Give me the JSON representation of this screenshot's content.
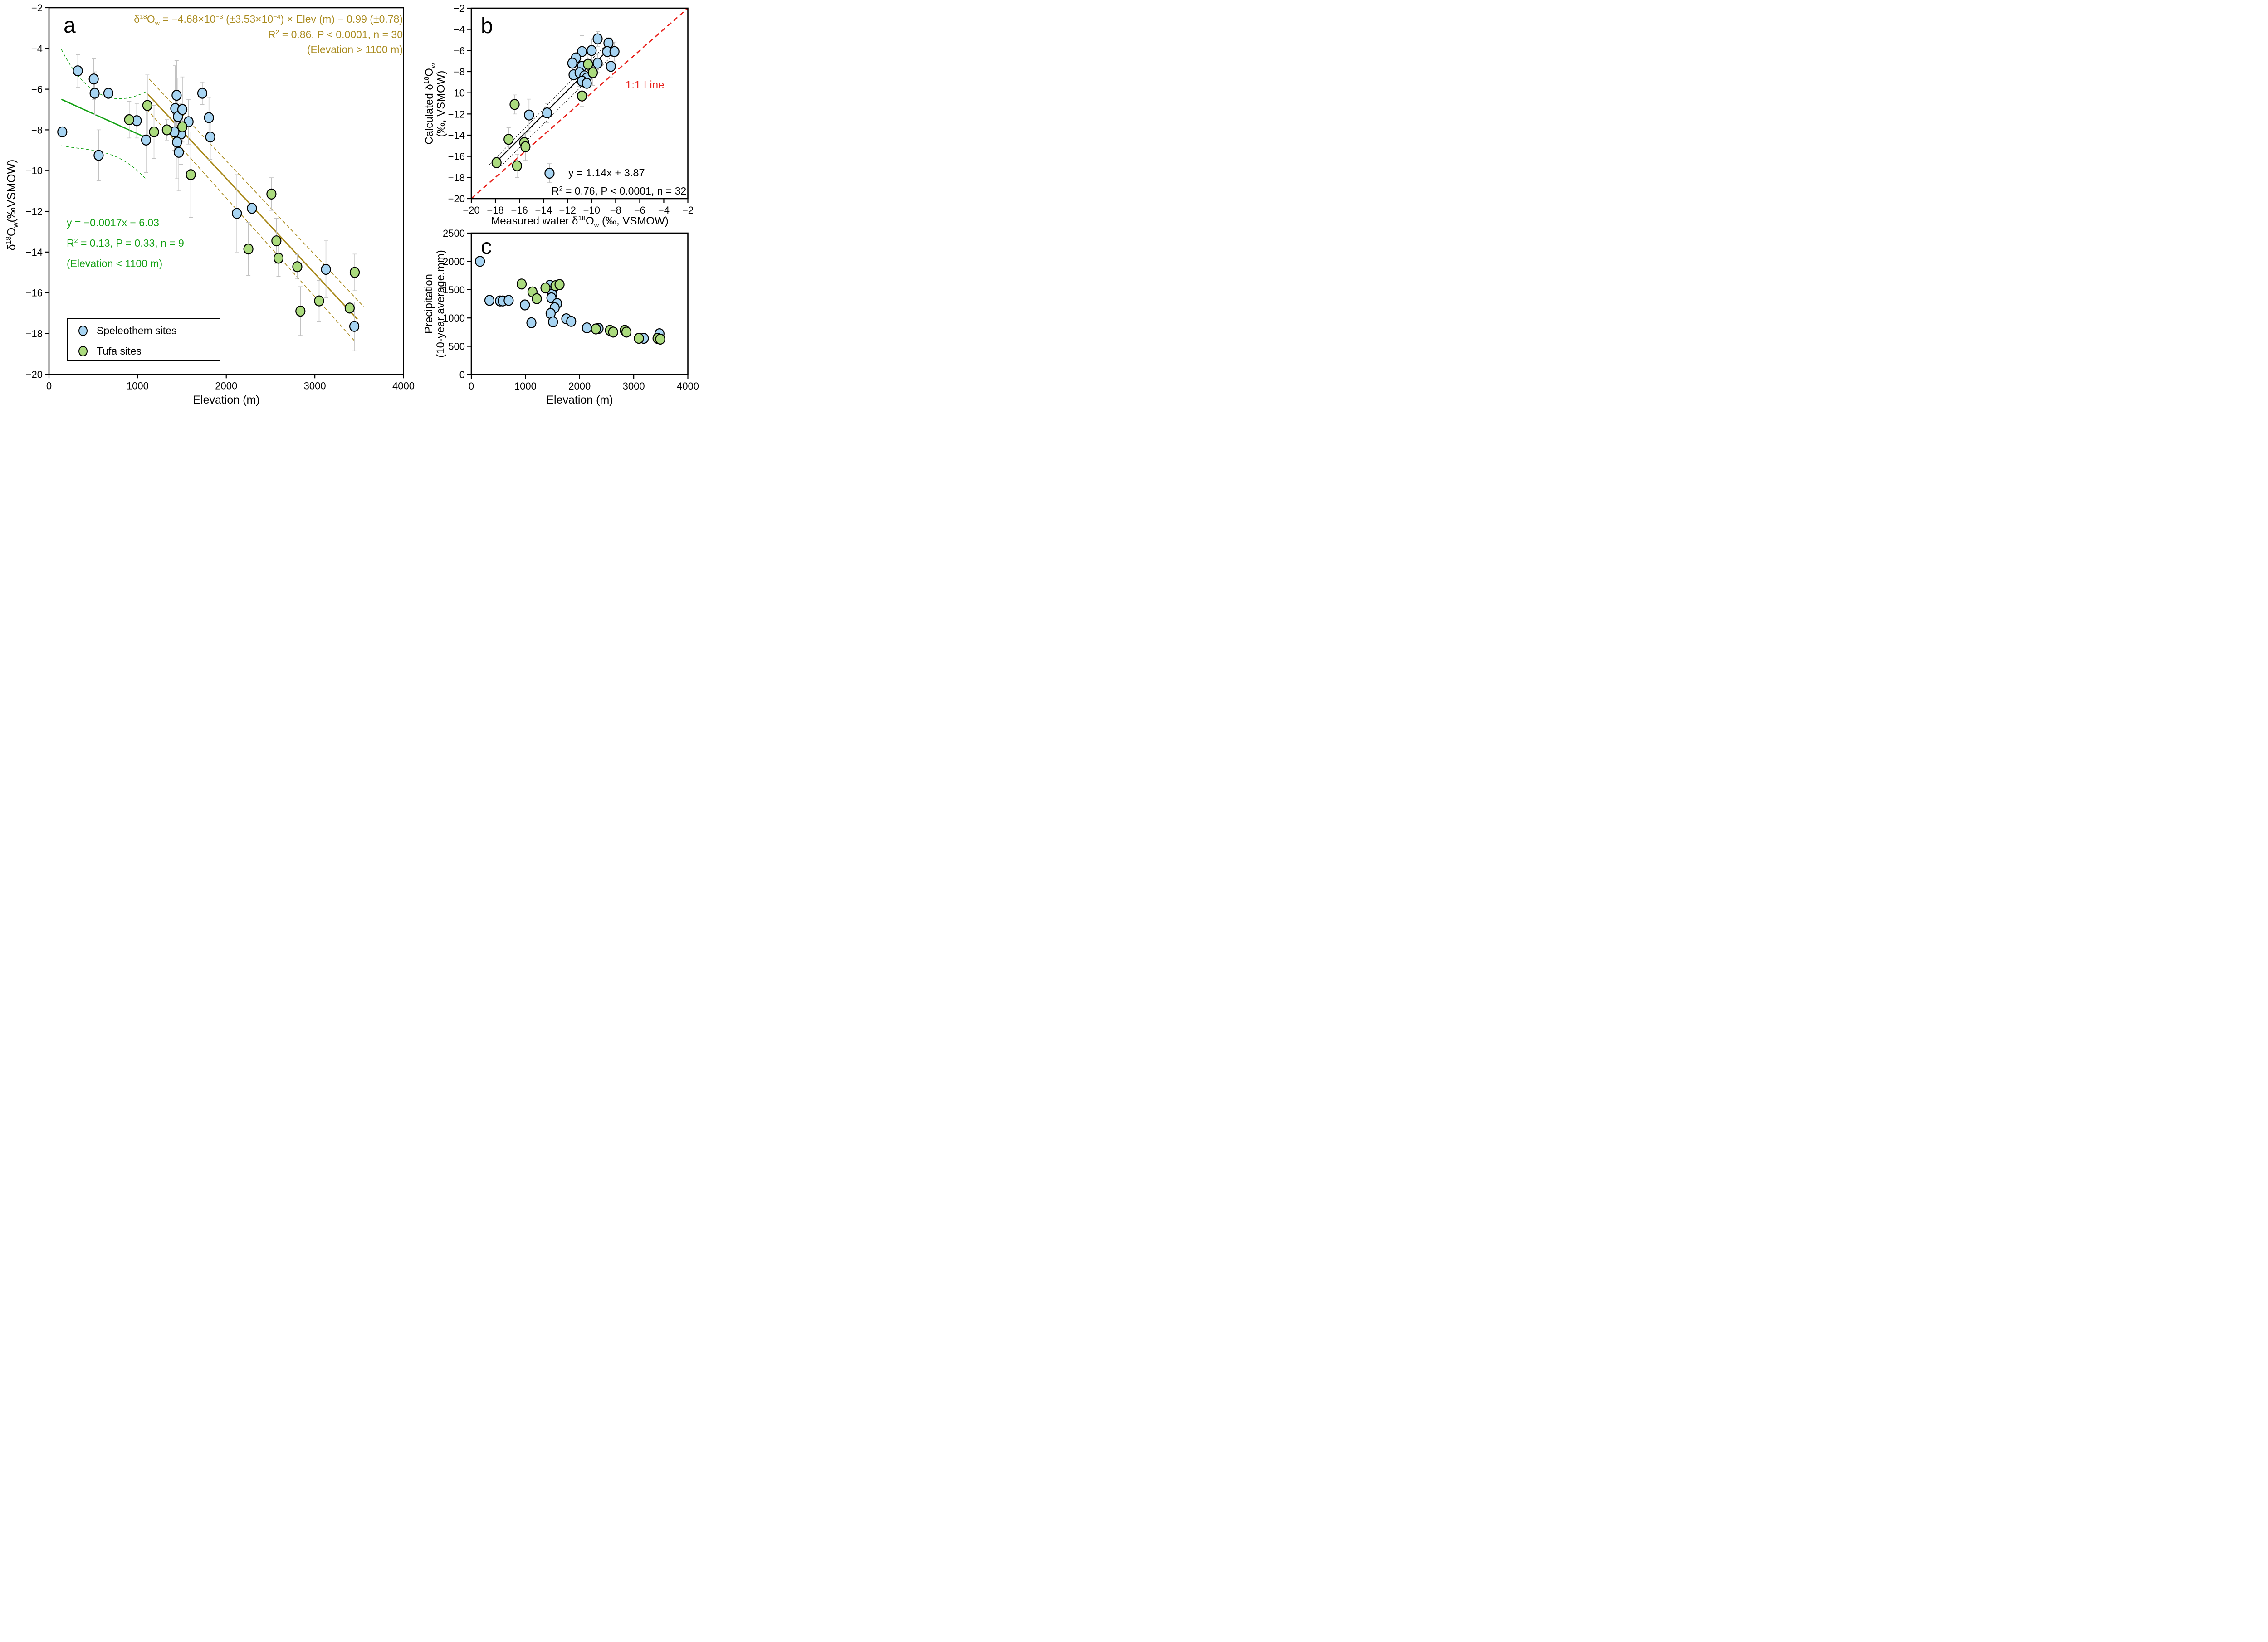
{
  "colors": {
    "blue": "#A7D4F2",
    "green": "#ABDB7E",
    "olive": "#A98A1D",
    "line_green": "#12A012",
    "red": "#E8211B",
    "gray": "#C2C2C2",
    "black": "#000000"
  },
  "legend": {
    "speleothem": "Speleothem sites",
    "tufa": "Tufa sites"
  },
  "text": {
    "letter_a": "a",
    "letter_b": "b",
    "letter_c": "c",
    "a_ann3": "(Elevation > 1100 m)",
    "a_green1": "y = −0.0017x −  6.03",
    "a_green3": "(Elevation < 1100 m)",
    "one_to_one": "1:1 Line",
    "b_eq1": "y = 1.14x + 3.87",
    "b_ylabel2": "(‰, VSMOW)",
    "c_ylabel1": "Precipitation",
    "c_ylabel2": "(10-year average,mm)",
    "a_xlabel": "Elevation (m)",
    "c_xlabel": "Elevation (m)"
  },
  "rich": {
    "a_ylabel": [
      {
        "t": "δ"
      },
      {
        "t": "18",
        "sup": 1
      },
      {
        "t": "O"
      },
      {
        "t": "w",
        "sub": 1
      },
      {
        "t": "(‰VSMOW)"
      }
    ],
    "a_ann1": [
      {
        "t": "δ"
      },
      {
        "t": "18",
        "sup": 1
      },
      {
        "t": "O"
      },
      {
        "t": "w",
        "sub": 1
      },
      {
        "t": " = −4.68×10"
      },
      {
        "t": "−3",
        "sup": 1
      },
      {
        "t": " (±3.53×10"
      },
      {
        "t": "−4",
        "sup": 1
      },
      {
        "t": ") × Elev (m) − 0.99 (±0.78)"
      }
    ],
    "a_ann2": [
      {
        "t": "R"
      },
      {
        "t": "2",
        "sup": 1
      },
      {
        "t": " = 0.86, P < 0.0001, n = 30"
      }
    ],
    "a_green2": [
      {
        "t": "R"
      },
      {
        "t": "2",
        "sup": 1
      },
      {
        "t": " = 0.13, P = 0.33, n = 9"
      }
    ],
    "b_xlabel": [
      {
        "t": "Measured water δ"
      },
      {
        "t": "18",
        "sup": 1
      },
      {
        "t": "O"
      },
      {
        "t": "w",
        "sub": 1
      },
      {
        "t": " (‰, VSMOW)"
      }
    ],
    "b_ylabel1": [
      {
        "t": "Calculated δ"
      },
      {
        "t": "18",
        "sup": 1
      },
      {
        "t": "O"
      },
      {
        "t": "w",
        "sub": 1
      }
    ],
    "b_eq2": [
      {
        "t": "R"
      },
      {
        "t": "2",
        "sup": 1
      },
      {
        "t": " = 0.76, P < 0.0001, n = 32"
      }
    ]
  },
  "chart_data": [
    {
      "id": "a",
      "type": "scatter",
      "title": "",
      "xlabel": "Elevation (m)",
      "ylabel": "δ18Ow (‰ VSMOW)",
      "xlim": [
        0,
        4000
      ],
      "ylim": [
        -20,
        -2
      ],
      "grid": false,
      "legend_position": "bottom-left",
      "legend_entries": [
        "Speleothem sites",
        "Tufa sites"
      ],
      "annotations": [
        "δ18Ow = −4.68×10−3 (±3.53×10−4) × Elev (m) − 0.99 (±0.78)",
        "R2 = 0.86, P < 0.0001, n = 30",
        "(Elevation > 1100 m)",
        "y = −0.0017x − 6.03",
        "R2 = 0.13, P = 0.33, n = 9",
        "(Elevation < 1100 m)"
      ],
      "px": {
        "x0": 108,
        "y0": 17,
        "x1": 889.5,
        "y1": 825.3
      },
      "xrange": [
        0,
        4000
      ],
      "yrange": [
        -20,
        -2
      ],
      "marker": [
        10,
        11
      ],
      "xticks": [
        {
          "v": 0,
          "l": "0"
        },
        {
          "v": 1000,
          "l": "1000"
        },
        {
          "v": 2000,
          "l": "2000"
        },
        {
          "v": 3000,
          "l": "3000"
        },
        {
          "v": 4000,
          "l": "4000"
        }
      ],
      "yticks": [
        {
          "v": -2,
          "l": "−2"
        },
        {
          "v": -4,
          "l": "−4"
        },
        {
          "v": -6,
          "l": "−6"
        },
        {
          "v": -8,
          "l": "−8"
        },
        {
          "v": -10,
          "l": "−10"
        },
        {
          "v": -12,
          "l": "−12"
        },
        {
          "v": -14,
          "l": "−14"
        },
        {
          "v": -16,
          "l": "−16"
        },
        {
          "v": -18,
          "l": "−18"
        },
        {
          "v": -20,
          "l": "−20"
        }
      ],
      "lines": [
        {
          "name": "green-ci-upper",
          "type": "bezier",
          "pts": [
            [
              140,
              -4.05
            ],
            [
              450,
              -6.7
            ],
            [
              800,
              -6.8
            ],
            [
              1105,
              -6.1
            ]
          ],
          "color": "line_green",
          "w": 1.4,
          "dash": "6,5"
        },
        {
          "name": "green-ci-lower",
          "type": "bezier",
          "pts": [
            [
              140,
              -8.78
            ],
            [
              480,
              -9.05
            ],
            [
              760,
              -8.85
            ],
            [
              1090,
              -10.4
            ]
          ],
          "color": "line_green",
          "w": 1.4,
          "dash": "6,5"
        },
        {
          "name": "green-fit-line",
          "type": "seg",
          "pts": [
            [
              140,
              -6.5
            ],
            [
              1105,
              -8.4
            ]
          ],
          "color": "line_green",
          "w": 2.8
        },
        {
          "name": "olive-ci-upper",
          "type": "seg",
          "pts": [
            [
              1130,
              -5.5
            ],
            [
              3555,
              -16.7
            ]
          ],
          "color": "olive",
          "w": 1.7,
          "dash": "8,5"
        },
        {
          "name": "olive-ci-lower",
          "type": "seg",
          "pts": [
            [
              1105,
              -7.0
            ],
            [
              3445,
              -18.35
            ]
          ],
          "color": "olive",
          "w": 1.7,
          "dash": "8,5"
        },
        {
          "name": "olive-fit-line",
          "type": "seg",
          "pts": [
            [
              1105,
              -6.2
            ],
            [
              3480,
              -17.3
            ]
          ],
          "color": "olive",
          "w": 3
        }
      ],
      "series": [
        {
          "name": "speleothem",
          "color": "blue",
          "points": [
            [
              150,
              -8.1
            ],
            [
              325,
              -5.1,
              0.8
            ],
            [
              505,
              -5.5,
              1.0
            ],
            [
              515,
              -6.2,
              1.05
            ],
            [
              560,
              -9.25,
              1.25
            ],
            [
              670,
              -6.2
            ],
            [
              990,
              -7.55,
              0.85
            ],
            [
              1095,
              -8.5,
              1.6
            ],
            [
              1425,
              -6.95,
              2.1
            ],
            [
              1440,
              -6.3,
              1.7
            ],
            [
              1455,
              -7.35,
              1.9
            ],
            [
              1465,
              -9.1,
              1.9
            ],
            [
              1490,
              -8.2,
              1.5
            ],
            [
              1505,
              -7.0,
              1.6
            ],
            [
              1575,
              -7.6,
              1.1
            ],
            [
              1730,
              -6.2,
              0.55
            ],
            [
              1805,
              -7.4,
              1.0
            ],
            [
              1415,
              -8.1,
              0.9
            ],
            [
              1820,
              -8.35,
              1.1
            ],
            [
              1445,
              -8.6,
              1.8
            ],
            [
              2120,
              -12.1,
              1.9
            ],
            [
              2290,
              -11.85
            ],
            [
              3125,
              -14.85,
              1.4
            ],
            [
              3445,
              -17.65,
              1.2
            ]
          ]
        },
        {
          "name": "tufa",
          "color": "green",
          "points": [
            [
              905,
              -7.5,
              0.9
            ],
            [
              1110,
              -6.8,
              1.5
            ],
            [
              1185,
              -8.1,
              1.3
            ],
            [
              1330,
              -8.0,
              0.5
            ],
            [
              1505,
              -7.85
            ],
            [
              1600,
              -10.2,
              2.1
            ],
            [
              2250,
              -13.85,
              1.3
            ],
            [
              2510,
              -11.15,
              0.8
            ],
            [
              2566,
              -13.45,
              1.1
            ],
            [
              2590,
              -14.3,
              0.9
            ],
            [
              2802,
              -14.72,
              0.6
            ],
            [
              2837,
              -16.9,
              1.2
            ],
            [
              3048,
              -16.4,
              1.0
            ],
            [
              3393,
              -16.75
            ],
            [
              3450,
              -15.0,
              0.9
            ]
          ]
        }
      ]
    },
    {
      "id": "b",
      "type": "scatter",
      "title": "",
      "xlabel": "Measured water δ18Ow (‰, VSMOW)",
      "ylabel": "Calculated δ18Ow (‰, VSMOW)",
      "xlim": [
        -20,
        -2
      ],
      "ylim": [
        -20,
        -2
      ],
      "grid": false,
      "annotations": [
        "1:1 Line",
        "y = 1.14x + 3.87",
        "R2 = 0.76, P < 0.0001, n = 32"
      ],
      "px": {
        "x0": 1039,
        "y0": 18,
        "x1": 1516.5,
        "y1": 438
      },
      "xrange": [
        -20,
        -2
      ],
      "yrange": [
        -20,
        -2
      ],
      "marker": [
        10,
        11
      ],
      "xticks": [
        {
          "v": -20,
          "l": "−20"
        },
        {
          "v": -18,
          "l": "−18"
        },
        {
          "v": -16,
          "l": "−16"
        },
        {
          "v": -14,
          "l": "−14"
        },
        {
          "v": -12,
          "l": "−12"
        },
        {
          "v": -10,
          "l": "−10"
        },
        {
          "v": -8,
          "l": "−8"
        },
        {
          "v": -6,
          "l": "−6"
        },
        {
          "v": -4,
          "l": "−4"
        },
        {
          "v": -2,
          "l": "−2"
        }
      ],
      "yticks": [
        {
          "v": -2,
          "l": "−2"
        },
        {
          "v": -4,
          "l": "−4"
        },
        {
          "v": -6,
          "l": "−6"
        },
        {
          "v": -8,
          "l": "−8"
        },
        {
          "v": -10,
          "l": "−10"
        },
        {
          "v": -12,
          "l": "−12"
        },
        {
          "v": -14,
          "l": "−14"
        },
        {
          "v": -16,
          "l": "−16"
        },
        {
          "v": -18,
          "l": "−18"
        },
        {
          "v": -20,
          "l": "−20"
        }
      ],
      "lines": [
        {
          "name": "one-to-one-line",
          "type": "seg",
          "pts": [
            [
              -20,
              -20
            ],
            [
              -2,
              -2
            ]
          ],
          "color": "red",
          "w": 2.8,
          "dash": "11,7"
        },
        {
          "name": "fit-ci-upper",
          "type": "seg",
          "pts": [
            [
              -18.5,
              -16.8
            ],
            [
              -8.3,
              -4.85
            ]
          ],
          "color": "black",
          "w": 1,
          "dash": "4,3"
        },
        {
          "name": "fit-ci-lower",
          "type": "seg",
          "pts": [
            [
              -17.55,
              -16.95
            ],
            [
              -7.95,
              -6.1
            ]
          ],
          "color": "black",
          "w": 1,
          "dash": "4,3"
        },
        {
          "name": "fit-line",
          "type": "seg",
          "pts": [
            [
              -17.9,
              -16.5
            ],
            [
              -8.2,
              -5.45
            ]
          ],
          "color": "black",
          "w": 2.4
        }
      ],
      "series": [
        {
          "name": "speleothem",
          "color": "blue",
          "points": [
            [
              -9.5,
              -4.9,
              0.7
            ],
            [
              -8.6,
              -5.3,
              0.5
            ],
            [
              -10.8,
              -6.1,
              1.5
            ],
            [
              -10.0,
              -6.0,
              1.1
            ],
            [
              -8.7,
              -6.1,
              0.6
            ],
            [
              -8.1,
              -6.1,
              0.9
            ],
            [
              -11.3,
              -6.7
            ],
            [
              -11.6,
              -7.2
            ],
            [
              -10.8,
              -7.5,
              1.2
            ],
            [
              -9.5,
              -7.2,
              0.9
            ],
            [
              -8.4,
              -7.5,
              1.0
            ],
            [
              -11.5,
              -8.3
            ],
            [
              -11.0,
              -8.1,
              1.3
            ],
            [
              -10.6,
              -8.4,
              1.1
            ],
            [
              -10.4,
              -8.6,
              1.6
            ],
            [
              -10.8,
              -8.9
            ],
            [
              -10.4,
              -9.1,
              1.3
            ],
            [
              -15.2,
              -12.1,
              1.5
            ],
            [
              -13.7,
              -11.9,
              0.9
            ],
            [
              -13.5,
              -17.6,
              0.9
            ]
          ]
        },
        {
          "name": "tufa",
          "color": "green",
          "points": [
            [
              -10.3,
              -7.3,
              1.0
            ],
            [
              -9.9,
              -8.1,
              1.2
            ],
            [
              -10.8,
              -10.3,
              1.0
            ],
            [
              -16.4,
              -11.1,
              0.9
            ],
            [
              -16.9,
              -14.4,
              1.1
            ],
            [
              -15.6,
              -14.7,
              0.8
            ],
            [
              -15.5,
              -15.1,
              1.3
            ],
            [
              -17.9,
              -16.6,
              0.5
            ],
            [
              -16.2,
              -16.9,
              1.1
            ]
          ]
        }
      ]
    },
    {
      "id": "c",
      "type": "scatter",
      "title": "",
      "xlabel": "Elevation (m)",
      "ylabel": "Precipitation (10-year average, mm)",
      "xlim": [
        0,
        4000
      ],
      "ylim": [
        0,
        2500
      ],
      "grid": false,
      "annotations": [],
      "px": {
        "x0": 1039,
        "y0": 514,
        "x1": 1516.5,
        "y1": 826
      },
      "xrange": [
        0,
        4000
      ],
      "yrange": [
        0,
        2500
      ],
      "marker": [
        10,
        11
      ],
      "xticks": [
        {
          "v": 0,
          "l": "0"
        },
        {
          "v": 1000,
          "l": "1000"
        },
        {
          "v": 2000,
          "l": "2000"
        },
        {
          "v": 3000,
          "l": "3000"
        },
        {
          "v": 4000,
          "l": "4000"
        }
      ],
      "yticks": [
        {
          "v": 0,
          "l": "0"
        },
        {
          "v": 500,
          "l": "500"
        },
        {
          "v": 1000,
          "l": "1000"
        },
        {
          "v": 1500,
          "l": "1500"
        },
        {
          "v": 2000,
          "l": "2000"
        },
        {
          "v": 2500,
          "l": "2500"
        }
      ],
      "lines": [],
      "series": [
        {
          "name": "speleothem",
          "color": "blue",
          "points": [
            [
              160,
              2000
            ],
            [
              335,
              1310
            ],
            [
              530,
              1300
            ],
            [
              580,
              1300
            ],
            [
              690,
              1310
            ],
            [
              990,
              1230
            ],
            [
              1110,
              915
            ],
            [
              1450,
              1575
            ],
            [
              1490,
              1470
            ],
            [
              1495,
              1420
            ],
            [
              1480,
              1355
            ],
            [
              1585,
              1255
            ],
            [
              1540,
              1180
            ],
            [
              1465,
              1080
            ],
            [
              1510,
              930
            ],
            [
              1755,
              985
            ],
            [
              1845,
              940
            ],
            [
              2135,
              825
            ],
            [
              2350,
              815
            ],
            [
              3185,
              640
            ],
            [
              3475,
              720
            ]
          ]
        },
        {
          "name": "tufa",
          "color": "green",
          "points": [
            [
              930,
              1600
            ],
            [
              1130,
              1460
            ],
            [
              1210,
              1340
            ],
            [
              1370,
              1530
            ],
            [
              1555,
              1570
            ],
            [
              1630,
              1590
            ],
            [
              2300,
              805
            ],
            [
              2560,
              780
            ],
            [
              2620,
              750
            ],
            [
              2835,
              780
            ],
            [
              2865,
              750
            ],
            [
              3095,
              640
            ],
            [
              3440,
              640
            ],
            [
              3490,
              625
            ]
          ]
        }
      ]
    }
  ]
}
